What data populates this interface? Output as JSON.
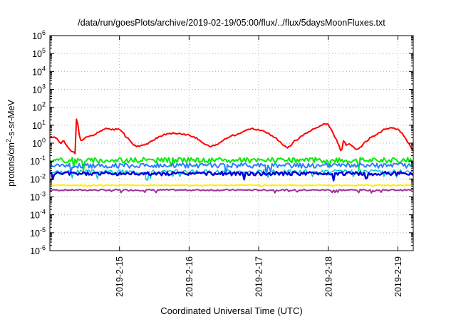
{
  "chart_data": {
    "type": "line",
    "title": "/data/run/goesPlots/archive/2019-02-19/05:00/flux/../flux/5daysMoonFluxes.txt",
    "xlabel": "Coordinated Universal Time (UTC)",
    "ylabel_parts": [
      "protons/cm",
      "2",
      "-s-sr-MeV"
    ],
    "xlim": [
      0,
      5.22
    ],
    "x_units": "days since 2019-02-14 00:00 UTC",
    "x_ticks": [
      {
        "x": 1,
        "label": "2019-2-15"
      },
      {
        "x": 2,
        "label": "2019-2-16"
      },
      {
        "x": 3,
        "label": "2019-2-17"
      },
      {
        "x": 4,
        "label": "2019-2-18"
      },
      {
        "x": 5,
        "label": "2019-2-19"
      }
    ],
    "y_scale": "log",
    "ylim_exp": [
      -6,
      6
    ],
    "y_ticks": [
      {
        "base": "10",
        "exp": "-6"
      },
      {
        "base": "10",
        "exp": "-5"
      },
      {
        "base": "10",
        "exp": "-4"
      },
      {
        "base": "10",
        "exp": "-3"
      },
      {
        "base": "10",
        "exp": "-2"
      },
      {
        "base": "10",
        "exp": "-1"
      },
      {
        "base": "10",
        "exp": "0"
      },
      {
        "base": "10",
        "exp": "1"
      },
      {
        "base": "10",
        "exp": "2"
      },
      {
        "base": "10",
        "exp": "3"
      },
      {
        "base": "10",
        "exp": "4"
      },
      {
        "base": "10",
        "exp": "5"
      },
      {
        "base": "10",
        "exp": "6"
      }
    ],
    "grid": true,
    "series": [
      {
        "color": "#ff0000",
        "width": 2,
        "noise": 0.04,
        "seed": 1,
        "points": [
          [
            0,
            0.3
          ],
          [
            0.05,
            0.35
          ],
          [
            0.1,
            0.25
          ],
          [
            0.15,
            0.0
          ],
          [
            0.2,
            0.1
          ],
          [
            0.25,
            -0.2
          ],
          [
            0.3,
            -0.4
          ],
          [
            0.35,
            -0.55
          ],
          [
            0.37,
            -0.6
          ],
          [
            0.38,
            1.0
          ],
          [
            0.385,
            2.05
          ],
          [
            0.39,
            1.4
          ],
          [
            0.41,
            0.8
          ],
          [
            0.43,
            0.2
          ],
          [
            0.47,
            0.1
          ],
          [
            0.5,
            0.3
          ],
          [
            0.6,
            0.4
          ],
          [
            0.7,
            0.6
          ],
          [
            0.8,
            0.8
          ],
          [
            0.9,
            0.75
          ],
          [
            1.0,
            0.8
          ],
          [
            1.05,
            0.6
          ],
          [
            1.1,
            0.3
          ],
          [
            1.15,
            0.2
          ],
          [
            1.2,
            -0.1
          ],
          [
            1.25,
            -0.2
          ],
          [
            1.3,
            -0.15
          ],
          [
            1.4,
            -0.05
          ],
          [
            1.5,
            0.2
          ],
          [
            1.6,
            0.4
          ],
          [
            1.7,
            0.55
          ],
          [
            1.8,
            0.55
          ],
          [
            1.9,
            0.5
          ],
          [
            2.0,
            0.45
          ],
          [
            2.1,
            0.3
          ],
          [
            2.2,
            0.0
          ],
          [
            2.3,
            -0.2
          ],
          [
            2.4,
            -0.1
          ],
          [
            2.5,
            0.2
          ],
          [
            2.6,
            0.4
          ],
          [
            2.7,
            0.5
          ],
          [
            2.8,
            0.7
          ],
          [
            2.9,
            0.8
          ],
          [
            3.0,
            0.75
          ],
          [
            3.1,
            0.6
          ],
          [
            3.2,
            0.4
          ],
          [
            3.3,
            0.1
          ],
          [
            3.35,
            -0.1
          ],
          [
            3.4,
            -0.25
          ],
          [
            3.45,
            -0.2
          ],
          [
            3.5,
            0.1
          ],
          [
            3.55,
            0.2
          ],
          [
            3.6,
            0.35
          ],
          [
            3.7,
            0.6
          ],
          [
            3.8,
            0.8
          ],
          [
            3.9,
            1.0
          ],
          [
            3.95,
            1.1
          ],
          [
            4.0,
            1.05
          ],
          [
            4.05,
            0.7
          ],
          [
            4.1,
            0.3
          ],
          [
            4.15,
            -0.1
          ],
          [
            4.18,
            -0.5
          ],
          [
            4.2,
            -0.3
          ],
          [
            4.22,
            0.2
          ],
          [
            4.25,
            -0.1
          ],
          [
            4.3,
            0.0
          ],
          [
            4.35,
            -0.2
          ],
          [
            4.4,
            -0.4
          ],
          [
            4.45,
            -0.3
          ],
          [
            4.5,
            -0.05
          ],
          [
            4.55,
            0.1
          ],
          [
            4.6,
            0.3
          ],
          [
            4.7,
            0.5
          ],
          [
            4.8,
            0.75
          ],
          [
            4.9,
            0.85
          ],
          [
            5.0,
            0.75
          ],
          [
            5.05,
            0.6
          ],
          [
            5.1,
            0.3
          ],
          [
            5.15,
            0.0
          ],
          [
            5.2,
            -0.3
          ],
          [
            5.22,
            -0.45
          ]
        ]
      },
      {
        "color": "#00ee00",
        "width": 2,
        "noise": 0.15,
        "seed": 2,
        "points": [
          [
            0,
            -0.95
          ],
          [
            5.22,
            -0.95
          ]
        ]
      },
      {
        "color": "#00c8c8",
        "width": 1.5,
        "noise": 0.12,
        "seed": 3,
        "points": [
          [
            0,
            -1.6
          ],
          [
            5.22,
            -1.6
          ]
        ]
      },
      {
        "color": "#2a7fff",
        "width": 2,
        "noise": 0.14,
        "seed": 4,
        "points": [
          [
            0,
            -1.25
          ],
          [
            5.22,
            -1.25
          ]
        ]
      },
      {
        "color": "#0000dd",
        "width": 2.5,
        "noise": 0.1,
        "seed": 5,
        "points": [
          [
            0,
            -1.7
          ],
          [
            5.22,
            -1.7
          ]
        ]
      },
      {
        "color": "#ffee00",
        "width": 2,
        "noise": 0.02,
        "seed": 6,
        "points": [
          [
            0,
            -2.35
          ],
          [
            5.22,
            -2.35
          ]
        ]
      },
      {
        "color": "#993399",
        "width": 2,
        "noise": 0.04,
        "seed": 7,
        "points": [
          [
            0,
            -2.62
          ],
          [
            5.22,
            -2.62
          ]
        ]
      }
    ]
  }
}
